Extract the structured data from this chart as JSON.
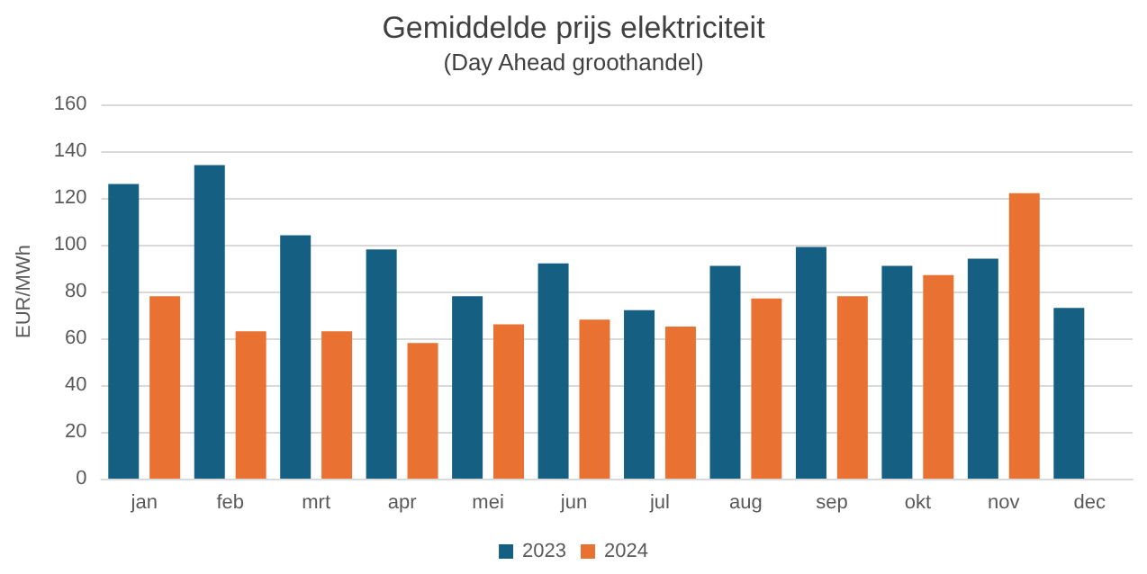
{
  "chart_data": {
    "type": "bar",
    "title": "Gemiddelde prijs elektriciteit",
    "subtitle": "(Day Ahead groothandel)",
    "ylabel": "EUR/MWh",
    "categories": [
      "jan",
      "feb",
      "mrt",
      "apr",
      "mei",
      "jun",
      "jul",
      "aug",
      "sep",
      "okt",
      "nov",
      "dec"
    ],
    "series": [
      {
        "name": "2023",
        "color": "#156082",
        "values": [
          126,
          134,
          104,
          98,
          78,
          92,
          72,
          91,
          99,
          91,
          94,
          73
        ]
      },
      {
        "name": "2024",
        "color": "#e97132",
        "values": [
          78,
          63,
          63,
          58,
          66,
          68,
          65,
          77,
          78,
          87,
          122,
          null
        ]
      }
    ],
    "ylim": [
      0,
      160
    ],
    "yticks": [
      0,
      20,
      40,
      60,
      80,
      100,
      120,
      140,
      160
    ],
    "grid": "y",
    "legend": "bottom"
  }
}
